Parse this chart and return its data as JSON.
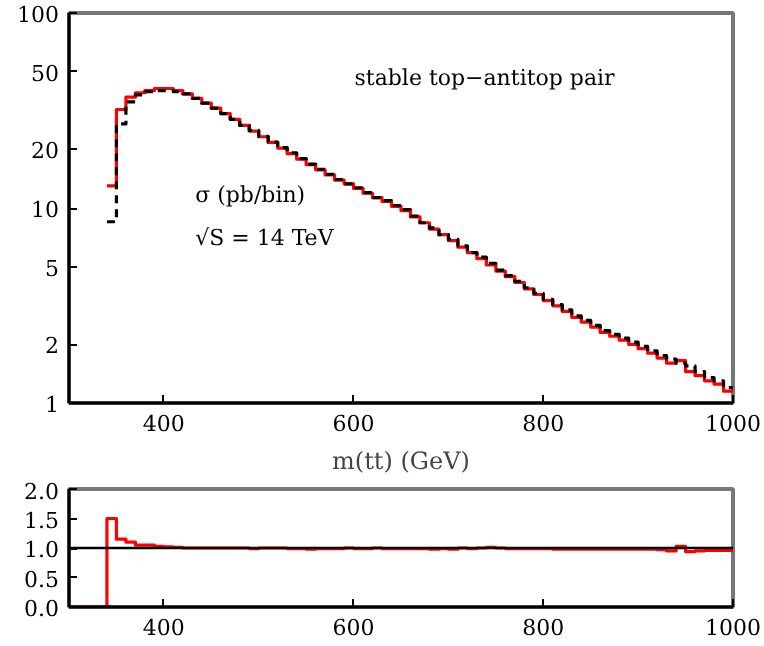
{
  "chart_data": [
    {
      "type": "histogram",
      "xlabel": "m(tt) (GeV)",
      "log": "y",
      "xlim": [
        300,
        1000
      ],
      "ylim": [
        1,
        100
      ],
      "xticks": [
        400,
        600,
        800,
        1000
      ],
      "yticks": [
        1,
        2,
        5,
        10,
        20,
        50,
        100
      ],
      "grid": false,
      "bins": [
        340,
        350,
        360,
        370,
        380,
        390,
        400,
        410,
        420,
        430,
        440,
        450,
        460,
        470,
        480,
        490,
        500,
        510,
        520,
        530,
        540,
        550,
        560,
        570,
        580,
        590,
        600,
        610,
        620,
        630,
        640,
        650,
        660,
        670,
        680,
        690,
        700,
        710,
        720,
        730,
        740,
        750,
        760,
        770,
        780,
        790,
        800,
        810,
        820,
        830,
        840,
        850,
        860,
        870,
        880,
        890,
        900,
        910,
        920,
        930,
        940,
        950,
        960,
        970,
        980,
        990,
        1000
      ],
      "series": [
        {
          "color": "#ff0000",
          "line_style": "solid",
          "values": [
            13,
            32,
            37,
            39,
            40,
            41,
            41,
            40,
            38.5,
            36.5,
            34.5,
            32.5,
            30.5,
            28.5,
            26.5,
            24.8,
            23.2,
            21.7,
            20.3,
            19,
            17.8,
            16.7,
            15.7,
            14.8,
            13.9,
            13.3,
            12.6,
            11.9,
            11.3,
            10.8,
            10.2,
            9.7,
            9.0,
            8.4,
            7.8,
            7.3,
            6.8,
            6.3,
            5.9,
            5.5,
            5.1,
            4.75,
            4.45,
            4.15,
            3.85,
            3.6,
            3.35,
            3.15,
            2.95,
            2.75,
            2.6,
            2.45,
            2.3,
            2.2,
            2.1,
            2.0,
            1.9,
            1.8,
            1.7,
            1.6,
            1.65,
            1.45,
            1.38,
            1.3,
            1.25,
            1.15
          ]
        },
        {
          "color": "#000000",
          "line_style": "dashed",
          "values": [
            8.5,
            27,
            35,
            38,
            39.5,
            40,
            40,
            39.5,
            38.5,
            36.5,
            34.5,
            32.5,
            30.5,
            28.5,
            26.5,
            25,
            23.3,
            21.8,
            20.4,
            19.2,
            17.9,
            16.8,
            15.8,
            14.9,
            14.0,
            13.3,
            12.7,
            12.0,
            11.3,
            10.9,
            10.3,
            9.8,
            9.1,
            8.4,
            7.9,
            7.3,
            6.9,
            6.4,
            5.9,
            5.6,
            5.2,
            4.8,
            4.5,
            4.2,
            3.9,
            3.65,
            3.4,
            3.2,
            3.0,
            2.8,
            2.65,
            2.5,
            2.35,
            2.25,
            2.15,
            2.05,
            1.95,
            1.85,
            1.75,
            1.68,
            1.6,
            1.55,
            1.45,
            1.35,
            1.3,
            1.2
          ]
        }
      ],
      "annotations": [
        "stable top−antitop pair",
        "σ (pb/bin)",
        "√S = 14 TeV"
      ]
    },
    {
      "type": "histogram",
      "xlim": [
        300,
        1000
      ],
      "ylim": [
        0,
        2
      ],
      "xticks": [
        400,
        600,
        800,
        1000
      ],
      "yticks": [
        {
          "value": 0,
          "label": "0.0"
        },
        {
          "value": 0.5,
          "label": "0.5"
        },
        {
          "value": 1,
          "label": "1.0"
        },
        {
          "value": 1.5,
          "label": "1.5"
        },
        {
          "value": 2,
          "label": "2.0"
        }
      ],
      "grid": false,
      "bins": [
        300,
        310,
        320,
        330,
        340,
        350,
        360,
        370,
        380,
        390,
        400,
        410,
        420,
        430,
        440,
        450,
        460,
        470,
        480,
        490,
        500,
        510,
        520,
        530,
        540,
        550,
        560,
        570,
        580,
        590,
        600,
        610,
        620,
        630,
        640,
        650,
        660,
        670,
        680,
        690,
        700,
        710,
        720,
        730,
        740,
        750,
        760,
        770,
        780,
        790,
        800,
        810,
        820,
        830,
        840,
        850,
        860,
        870,
        880,
        890,
        900,
        910,
        920,
        930,
        940,
        950,
        960,
        970,
        980,
        990,
        1000
      ],
      "series": [
        {
          "color": "#ff0000",
          "line_style": "solid",
          "values": [
            0,
            0,
            0,
            0,
            1.5,
            1.15,
            1.1,
            1.05,
            1.05,
            1.03,
            1.02,
            1.01,
            1.0,
            1.0,
            1.0,
            1.0,
            1.0,
            1.0,
            1.0,
            0.99,
            1.0,
            1.0,
            1.0,
            0.99,
            0.99,
            0.98,
            0.99,
            0.99,
            0.99,
            1.0,
            0.99,
            0.99,
            1.0,
            0.99,
            0.99,
            0.99,
            0.99,
            0.99,
            0.98,
            0.99,
            0.98,
            1.0,
            0.99,
            1.0,
            1.01,
            1.0,
            0.99,
            0.99,
            0.99,
            0.99,
            0.99,
            0.98,
            0.98,
            0.98,
            0.98,
            0.98,
            0.98,
            0.98,
            0.98,
            0.98,
            0.98,
            0.98,
            0.97,
            0.95,
            1.03,
            0.94,
            0.95,
            0.96,
            0.96,
            0.96
          ]
        }
      ],
      "ref_lines": [
        {
          "axis": "y",
          "value": 1,
          "color": "#000000"
        }
      ]
    }
  ]
}
